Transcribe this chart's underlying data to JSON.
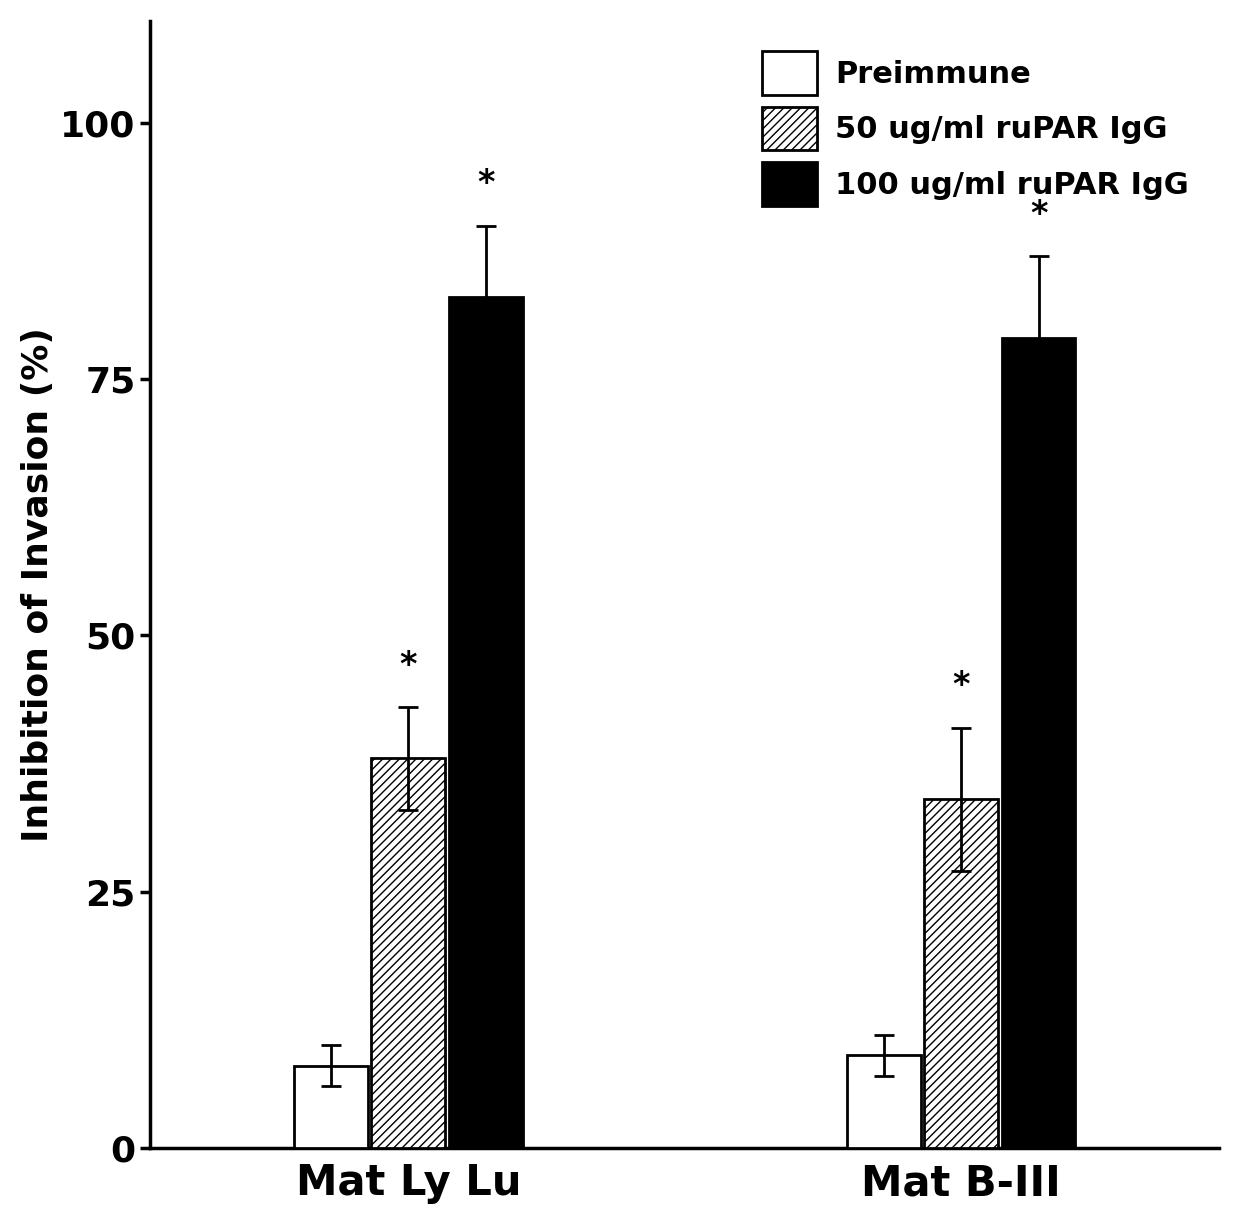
{
  "groups": [
    "Mat Ly Lu",
    "Mat B-III"
  ],
  "series": [
    "Preimmune",
    "50 ug/ml ruPAR IgG",
    "100 ug/ml ruPAR IgG"
  ],
  "values": [
    [
      8,
      38,
      83
    ],
    [
      9,
      34,
      79
    ]
  ],
  "errors": [
    [
      2,
      5,
      7
    ],
    [
      2,
      7,
      8
    ]
  ],
  "ylabel": "Inhibition of Invasion (%)",
  "ylim": [
    0,
    110
  ],
  "yticks": [
    0,
    25,
    50,
    75,
    100
  ],
  "bar_width": 0.2,
  "group_positions": [
    1.0,
    2.5
  ],
  "colors": [
    "white",
    "white",
    "black"
  ],
  "hatch_patterns": [
    "",
    "////",
    ""
  ],
  "legend_labels": [
    "Preimmune",
    "50 ug/ml ruPAR IgG",
    "100 ug/ml ruPAR IgG"
  ],
  "significance_markers": [
    [
      false,
      true,
      true
    ],
    [
      false,
      true,
      true
    ]
  ],
  "background_color": "white",
  "edge_color": "black",
  "fontsize_ticks": 26,
  "fontsize_ylabel": 26,
  "fontsize_xlabel": 30,
  "fontsize_legend": 22,
  "fontsize_star": 24
}
